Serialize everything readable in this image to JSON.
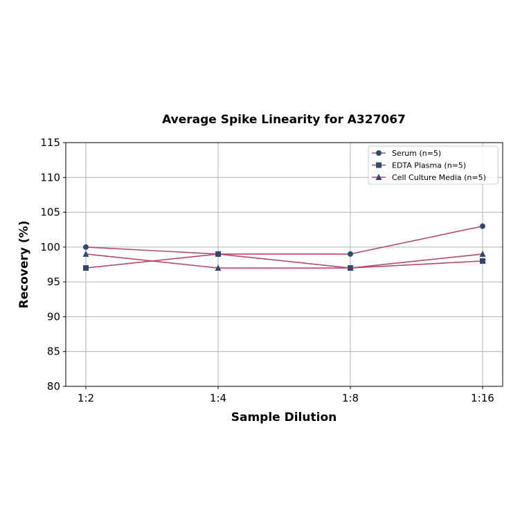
{
  "chart_data": {
    "type": "line",
    "title": "Average Spike Linearity for A327067",
    "xlabel": "Sample Dilution",
    "ylabel": "Recovery (%)",
    "categories": [
      "1:2",
      "1:4",
      "1:8",
      "1:16"
    ],
    "ylim": [
      80,
      115
    ],
    "yticks": [
      80,
      85,
      90,
      95,
      100,
      105,
      110,
      115
    ],
    "grid": true,
    "legend_position": "upper right",
    "series": [
      {
        "name": "Serum (n=5)",
        "marker": "circle",
        "values": [
          100,
          99,
          99,
          103
        ]
      },
      {
        "name": "EDTA Plasma (n=5)",
        "marker": "square",
        "values": [
          97,
          99,
          97,
          98
        ]
      },
      {
        "name": "Cell Culture Media (n=5)",
        "marker": "triangle",
        "values": [
          99,
          97,
          97,
          99
        ]
      }
    ],
    "colors": {
      "line": "#b5496b",
      "marker": "#2e4a6e"
    }
  }
}
